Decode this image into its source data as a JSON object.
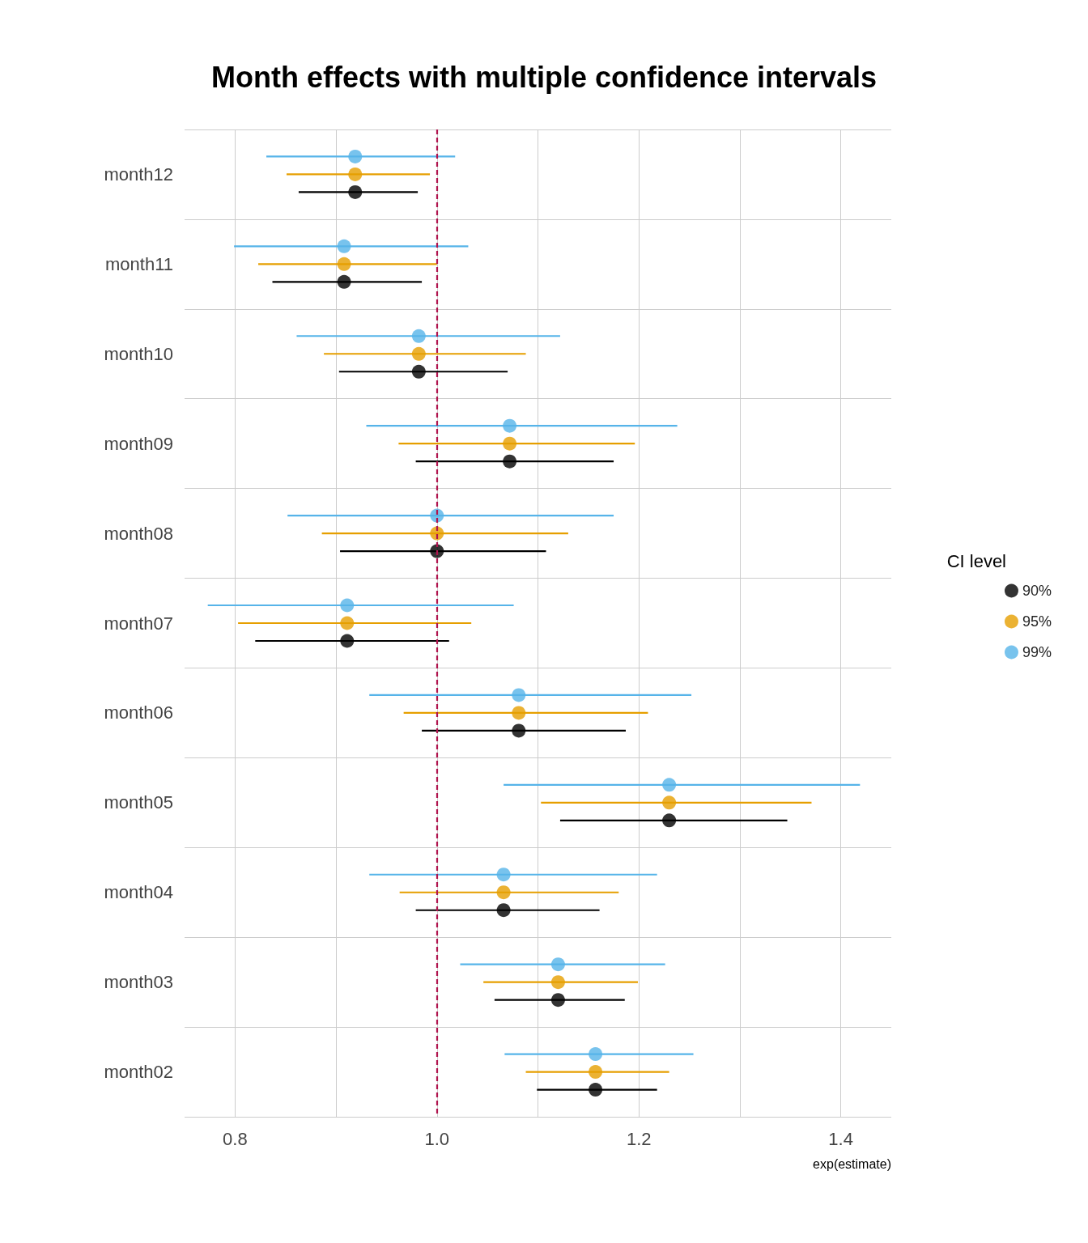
{
  "chart_data": {
    "type": "scatter",
    "title": "Month effects with multiple confidence intervals",
    "xlabel": "exp(estimate)",
    "legend_title": "CI level",
    "orientation": "horizontal",
    "categories": [
      "month12",
      "month11",
      "month10",
      "month09",
      "month08",
      "month07",
      "month06",
      "month05",
      "month04",
      "month03",
      "month02"
    ],
    "series": [
      {
        "name": "90%",
        "color": "#000000",
        "values": [
          0.919,
          0.908,
          0.982,
          1.072,
          1.0,
          0.911,
          1.081,
          1.23,
          1.066,
          1.12,
          1.157
        ],
        "errors": [
          [
            0.863,
            0.981
          ],
          [
            0.837,
            0.985
          ],
          [
            0.903,
            1.07
          ],
          [
            0.979,
            1.175
          ],
          [
            0.904,
            1.108
          ],
          [
            0.82,
            1.012
          ],
          [
            0.985,
            1.187
          ],
          [
            1.122,
            1.347
          ],
          [
            0.979,
            1.161
          ],
          [
            1.057,
            1.186
          ],
          [
            1.099,
            1.218
          ]
        ]
      },
      {
        "name": "95%",
        "color": "#e69f00",
        "values": [
          0.919,
          0.908,
          0.982,
          1.072,
          1.0,
          0.911,
          1.081,
          1.23,
          1.066,
          1.12,
          1.157
        ],
        "errors": [
          [
            0.851,
            0.993
          ],
          [
            0.823,
            1.0
          ],
          [
            0.888,
            1.088
          ],
          [
            0.962,
            1.196
          ],
          [
            0.886,
            1.13
          ],
          [
            0.803,
            1.034
          ],
          [
            0.967,
            1.209
          ],
          [
            1.103,
            1.371
          ],
          [
            0.963,
            1.18
          ],
          [
            1.046,
            1.199
          ],
          [
            1.088,
            1.23
          ]
        ]
      },
      {
        "name": "99%",
        "color": "#56b4e9",
        "values": [
          0.919,
          0.908,
          0.982,
          1.072,
          1.0,
          0.911,
          1.081,
          1.23,
          1.066,
          1.12,
          1.157
        ],
        "errors": [
          [
            0.831,
            1.018
          ],
          [
            0.799,
            1.031
          ],
          [
            0.861,
            1.122
          ],
          [
            0.93,
            1.238
          ],
          [
            0.852,
            1.175
          ],
          [
            0.773,
            1.076
          ],
          [
            0.933,
            1.252
          ],
          [
            1.066,
            1.419
          ],
          [
            0.933,
            1.218
          ],
          [
            1.023,
            1.226
          ],
          [
            1.067,
            1.254
          ]
        ]
      }
    ],
    "xlim": [
      0.75,
      1.45
    ],
    "xticks": [
      0.8,
      {
        "value": 0.9,
        "label": null
      },
      {
        "value": 1,
        "label": "1.0"
      },
      {
        "value": 1.1,
        "label": null
      },
      1.2,
      {
        "value": 1.3,
        "label": null
      },
      1.4
    ],
    "ref_lines": [
      {
        "axis": "x",
        "value": 1,
        "color": "#b0134d",
        "line_style": "dashed"
      }
    ],
    "grid": true,
    "legend": "right",
    "marker": "circle"
  }
}
